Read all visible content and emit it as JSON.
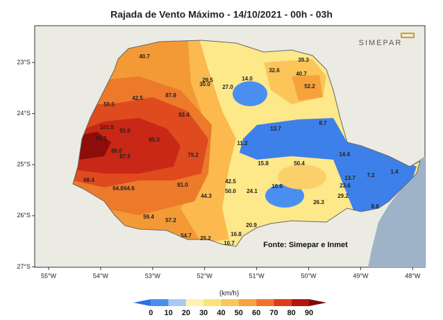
{
  "title": "Rajada de Vento Máximo - 14/10/2021 - 00h - 03h",
  "logo": "SIMEPAR",
  "source": "Fonte: Simepar e Inmet",
  "unit": "(km/h)",
  "lon_ticks": [
    "55°W",
    "54°W",
    "53°W",
    "52°W",
    "51°W",
    "50°W",
    "49°W",
    "48°W"
  ],
  "lat_ticks": [
    "23°S",
    "24°S",
    "25°S",
    "26°S",
    "27°S"
  ],
  "stations": [
    "40.7",
    "42.5",
    "87.8",
    "59.0",
    "82.4",
    "101.5",
    "91.0",
    "91.1",
    "85.3",
    "86.0",
    "87.5",
    "79.2",
    "68.4",
    "64.8",
    "64.6",
    "81.0",
    "44.3",
    "42.5",
    "50.0",
    "24.1",
    "59.4",
    "57.2",
    "54.7",
    "25.2",
    "16.8",
    "10.7",
    "20.9",
    "29.5",
    "30.0",
    "27.0",
    "14.0",
    "32.6",
    "39.3",
    "40.7",
    "52.2",
    "13.7",
    "8.7",
    "11.2",
    "15.8",
    "50.4",
    "10.6",
    "26.3",
    "14.4",
    "13.7",
    "23.6",
    "29.2",
    "7.2",
    "1.4",
    "8.8"
  ],
  "legend": {
    "ticks": [
      "0",
      "10",
      "20",
      "30",
      "40",
      "50",
      "60",
      "70",
      "80",
      "90"
    ],
    "colors": [
      "#2f6fe0",
      "#4a8ff0",
      "#a9c9f2",
      "#fff2b0",
      "#fde27a",
      "#fbc55a",
      "#f7a23c",
      "#ef7428",
      "#df3a1a",
      "#b3150f",
      "#7a0a08"
    ]
  }
}
